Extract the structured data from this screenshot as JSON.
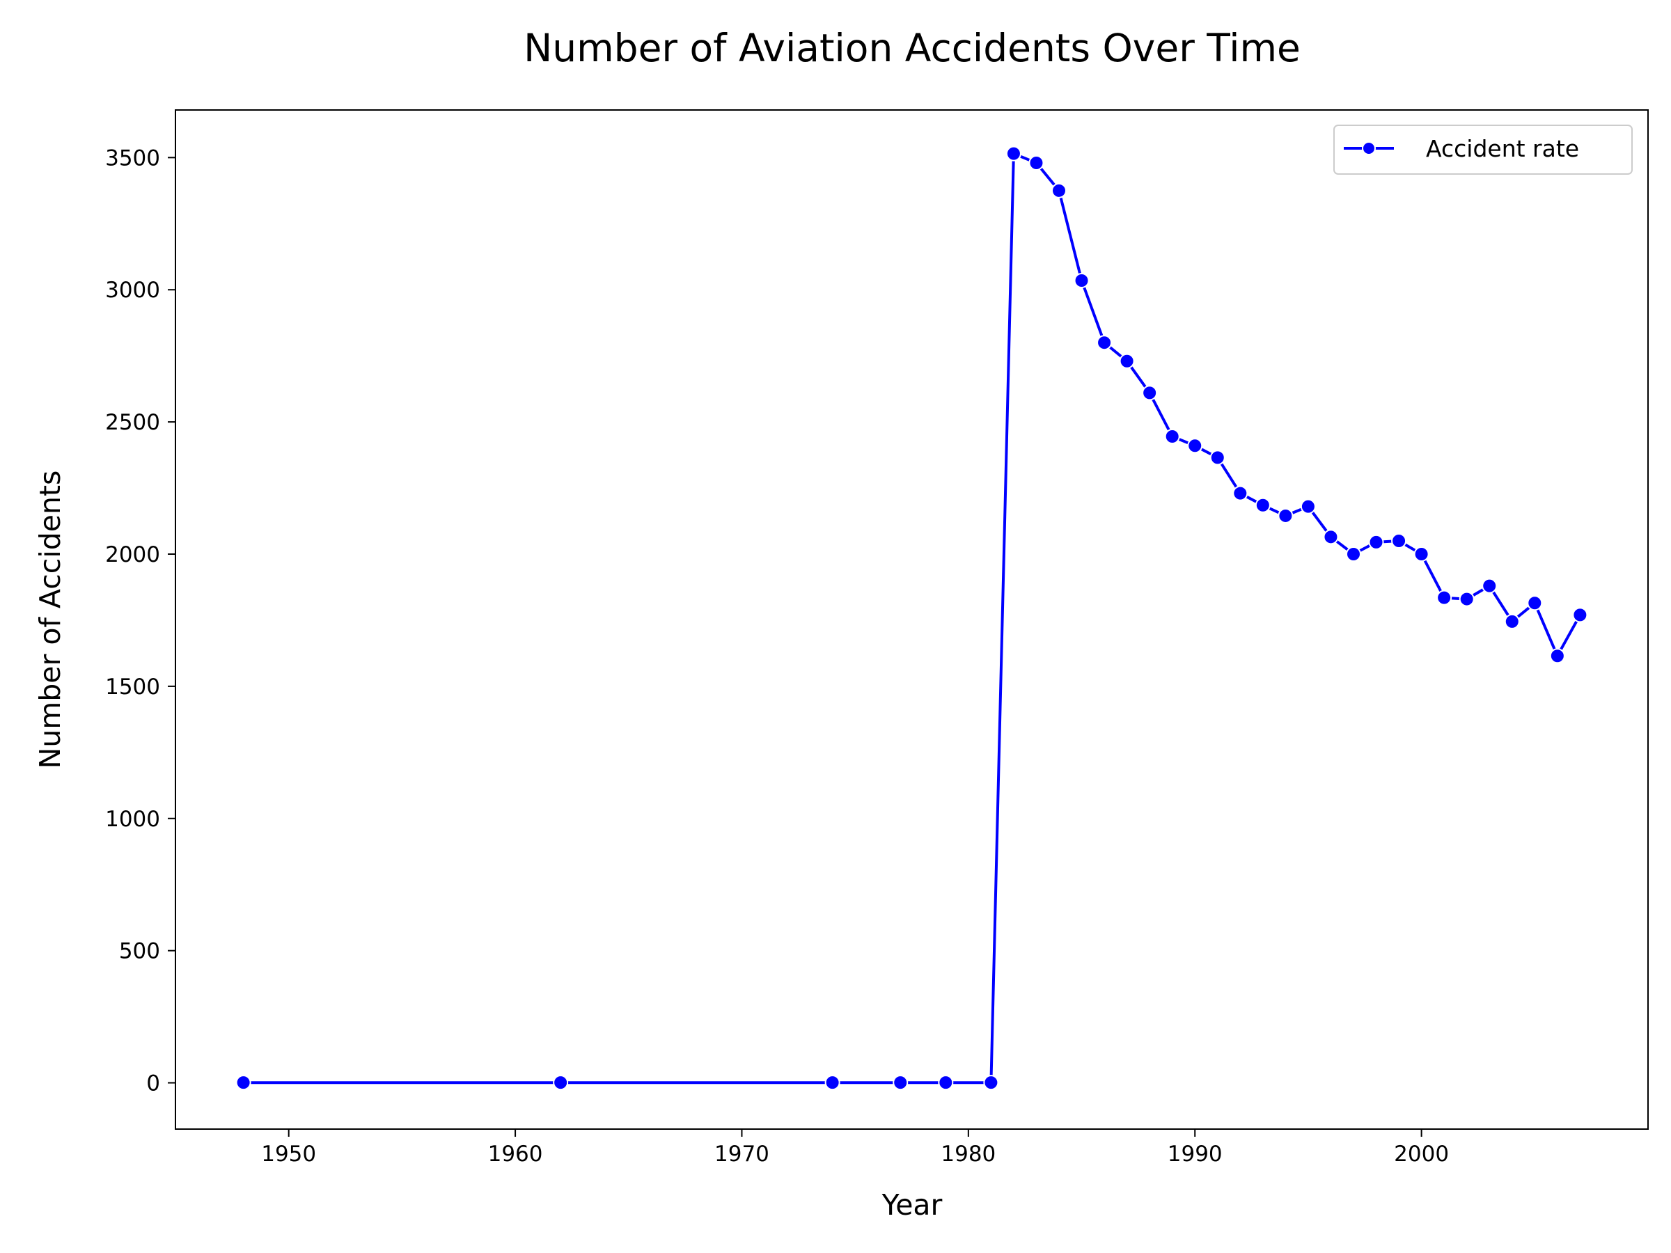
{
  "chart_data": {
    "type": "line",
    "title": "Number of Aviation Accidents Over Time",
    "xlabel": "Year",
    "ylabel": "Number of Accidents",
    "xlim": [
      1945,
      2010
    ],
    "ylim": [
      -175,
      3680
    ],
    "xticks": [
      1950,
      1960,
      1970,
      1980,
      1990,
      2000
    ],
    "yticks": [
      0,
      500,
      1000,
      1500,
      2000,
      2500,
      3000,
      3500
    ],
    "grid": false,
    "legend_position": "top-right",
    "series": [
      {
        "name": "Accident rate",
        "color": "#0000ff",
        "marker": "circle",
        "points": [
          {
            "x": 1948,
            "y": 1
          },
          {
            "x": 1962,
            "y": 1
          },
          {
            "x": 1974,
            "y": 1
          },
          {
            "x": 1977,
            "y": 1
          },
          {
            "x": 1979,
            "y": 1
          },
          {
            "x": 1981,
            "y": 1
          },
          {
            "x": 1982,
            "y": 3515
          },
          {
            "x": 1983,
            "y": 3480
          },
          {
            "x": 1984,
            "y": 3375
          },
          {
            "x": 1985,
            "y": 3035
          },
          {
            "x": 1986,
            "y": 2800
          },
          {
            "x": 1987,
            "y": 2730
          },
          {
            "x": 1988,
            "y": 2610
          },
          {
            "x": 1989,
            "y": 2445
          },
          {
            "x": 1990,
            "y": 2410
          },
          {
            "x": 1991,
            "y": 2365
          },
          {
            "x": 1992,
            "y": 2230
          },
          {
            "x": 1993,
            "y": 2185
          },
          {
            "x": 1994,
            "y": 2145
          },
          {
            "x": 1995,
            "y": 2180
          },
          {
            "x": 1996,
            "y": 2065
          },
          {
            "x": 1997,
            "y": 2000
          },
          {
            "x": 1998,
            "y": 2045
          },
          {
            "x": 1999,
            "y": 2050
          },
          {
            "x": 2000,
            "y": 2000
          },
          {
            "x": 2001,
            "y": 1835
          },
          {
            "x": 2002,
            "y": 1830
          },
          {
            "x": 2003,
            "y": 1880
          },
          {
            "x": 2004,
            "y": 1745
          },
          {
            "x": 2005,
            "y": 1815
          },
          {
            "x": 2006,
            "y": 1615
          },
          {
            "x": 2007,
            "y": 1770
          }
        ]
      }
    ]
  }
}
